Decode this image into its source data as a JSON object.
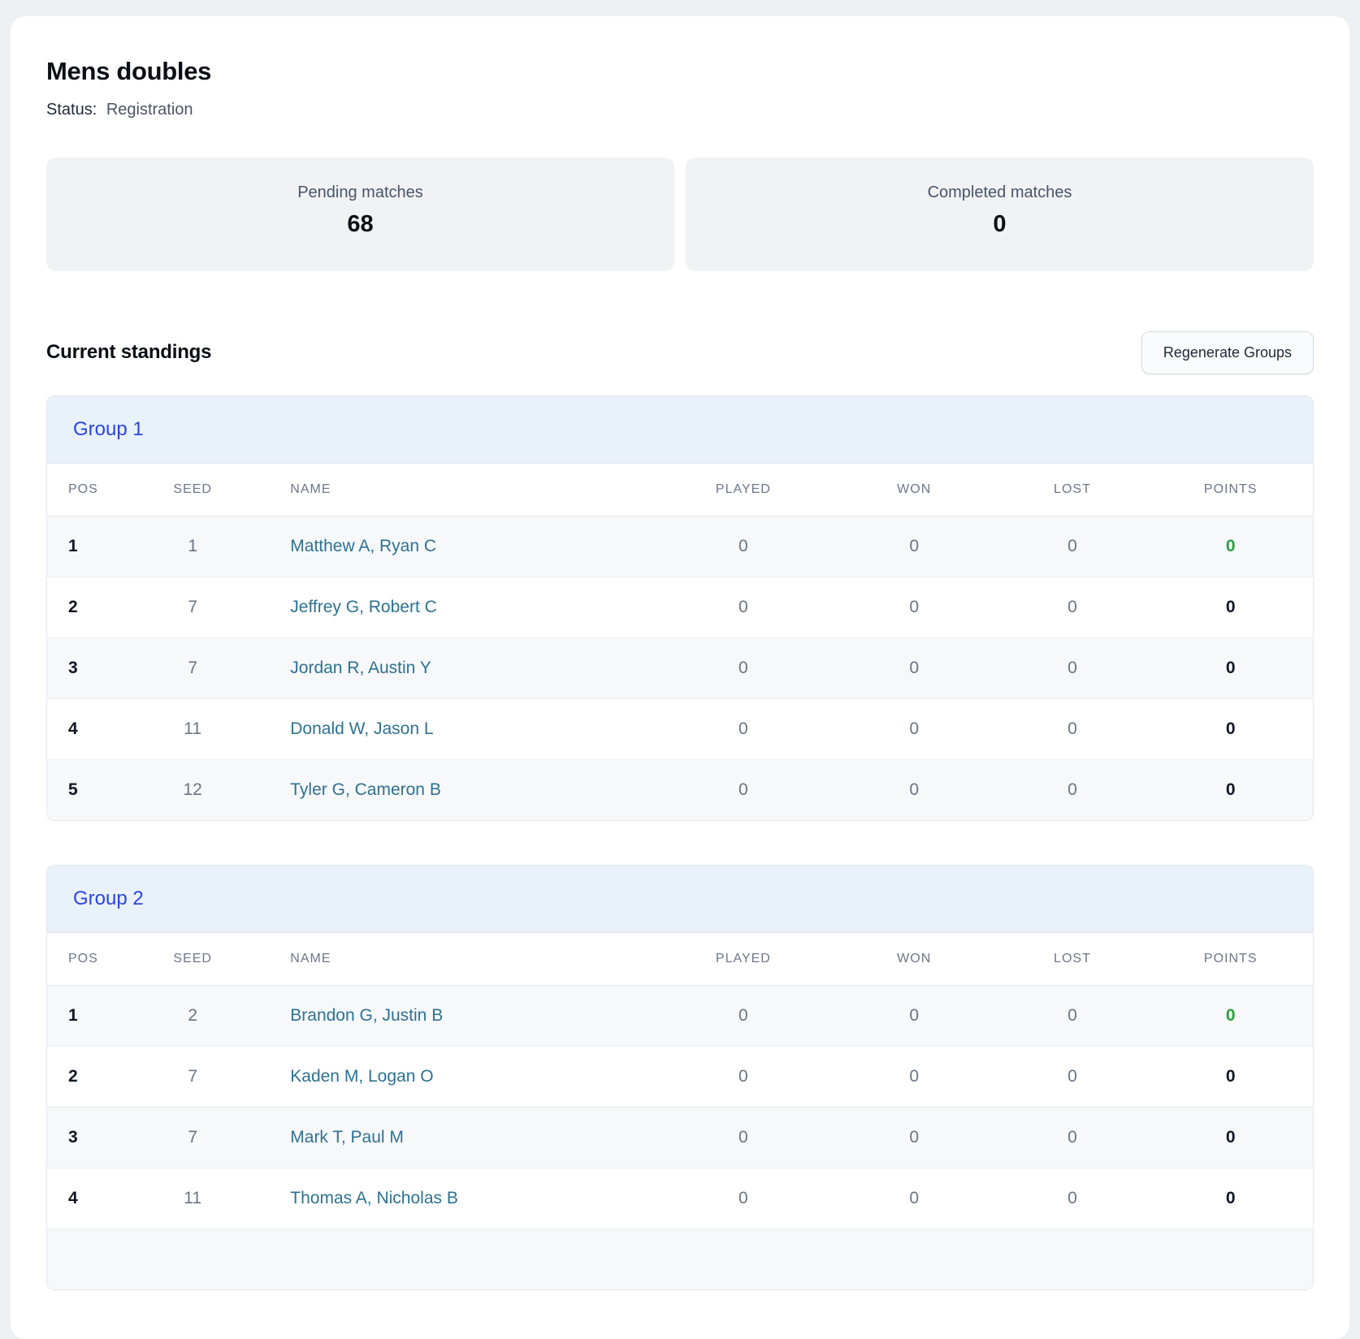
{
  "page": {
    "title": "Mens doubles",
    "status_label": "Status:",
    "status_value": "Registration"
  },
  "stats": [
    {
      "label": "Pending matches",
      "value": "68"
    },
    {
      "label": "Completed matches",
      "value": "0"
    }
  ],
  "standings": {
    "heading": "Current standings",
    "regenerate_button_label": "Regenerate Groups",
    "columns": [
      "POS",
      "SEED",
      "NAME",
      "PLAYED",
      "WON",
      "LOST",
      "POINTS"
    ],
    "groups": [
      {
        "title": "Group 1",
        "rows": [
          {
            "pos": "1",
            "seed": "1",
            "name": "Matthew A, Ryan C",
            "played": "0",
            "won": "0",
            "lost": "0",
            "points": "0",
            "points_highlight": true
          },
          {
            "pos": "2",
            "seed": "7",
            "name": "Jeffrey G, Robert C",
            "played": "0",
            "won": "0",
            "lost": "0",
            "points": "0",
            "points_highlight": false
          },
          {
            "pos": "3",
            "seed": "7",
            "name": "Jordan R, Austin Y",
            "played": "0",
            "won": "0",
            "lost": "0",
            "points": "0",
            "points_highlight": false
          },
          {
            "pos": "4",
            "seed": "11",
            "name": "Donald W, Jason L",
            "played": "0",
            "won": "0",
            "lost": "0",
            "points": "0",
            "points_highlight": false
          },
          {
            "pos": "5",
            "seed": "12",
            "name": "Tyler G, Cameron B",
            "played": "0",
            "won": "0",
            "lost": "0",
            "points": "0",
            "points_highlight": false
          }
        ],
        "partial_row": false
      },
      {
        "title": "Group 2",
        "rows": [
          {
            "pos": "1",
            "seed": "2",
            "name": "Brandon G, Justin B",
            "played": "0",
            "won": "0",
            "lost": "0",
            "points": "0",
            "points_highlight": true
          },
          {
            "pos": "2",
            "seed": "7",
            "name": "Kaden M, Logan O",
            "played": "0",
            "won": "0",
            "lost": "0",
            "points": "0",
            "points_highlight": false
          },
          {
            "pos": "3",
            "seed": "7",
            "name": "Mark T, Paul M",
            "played": "0",
            "won": "0",
            "lost": "0",
            "points": "0",
            "points_highlight": false
          },
          {
            "pos": "4",
            "seed": "11",
            "name": "Thomas A, Nicholas B",
            "played": "0",
            "won": "0",
            "lost": "0",
            "points": "0",
            "points_highlight": false
          }
        ],
        "partial_row": true
      }
    ]
  },
  "colors": {
    "accent_blue": "#2946e0",
    "name_link": "#2e7191",
    "points_green": "#2f9e44",
    "group_header_bg": "#e9f1fb",
    "stat_card_bg": "#f1f2f4",
    "page_bg": "#edeff2"
  }
}
